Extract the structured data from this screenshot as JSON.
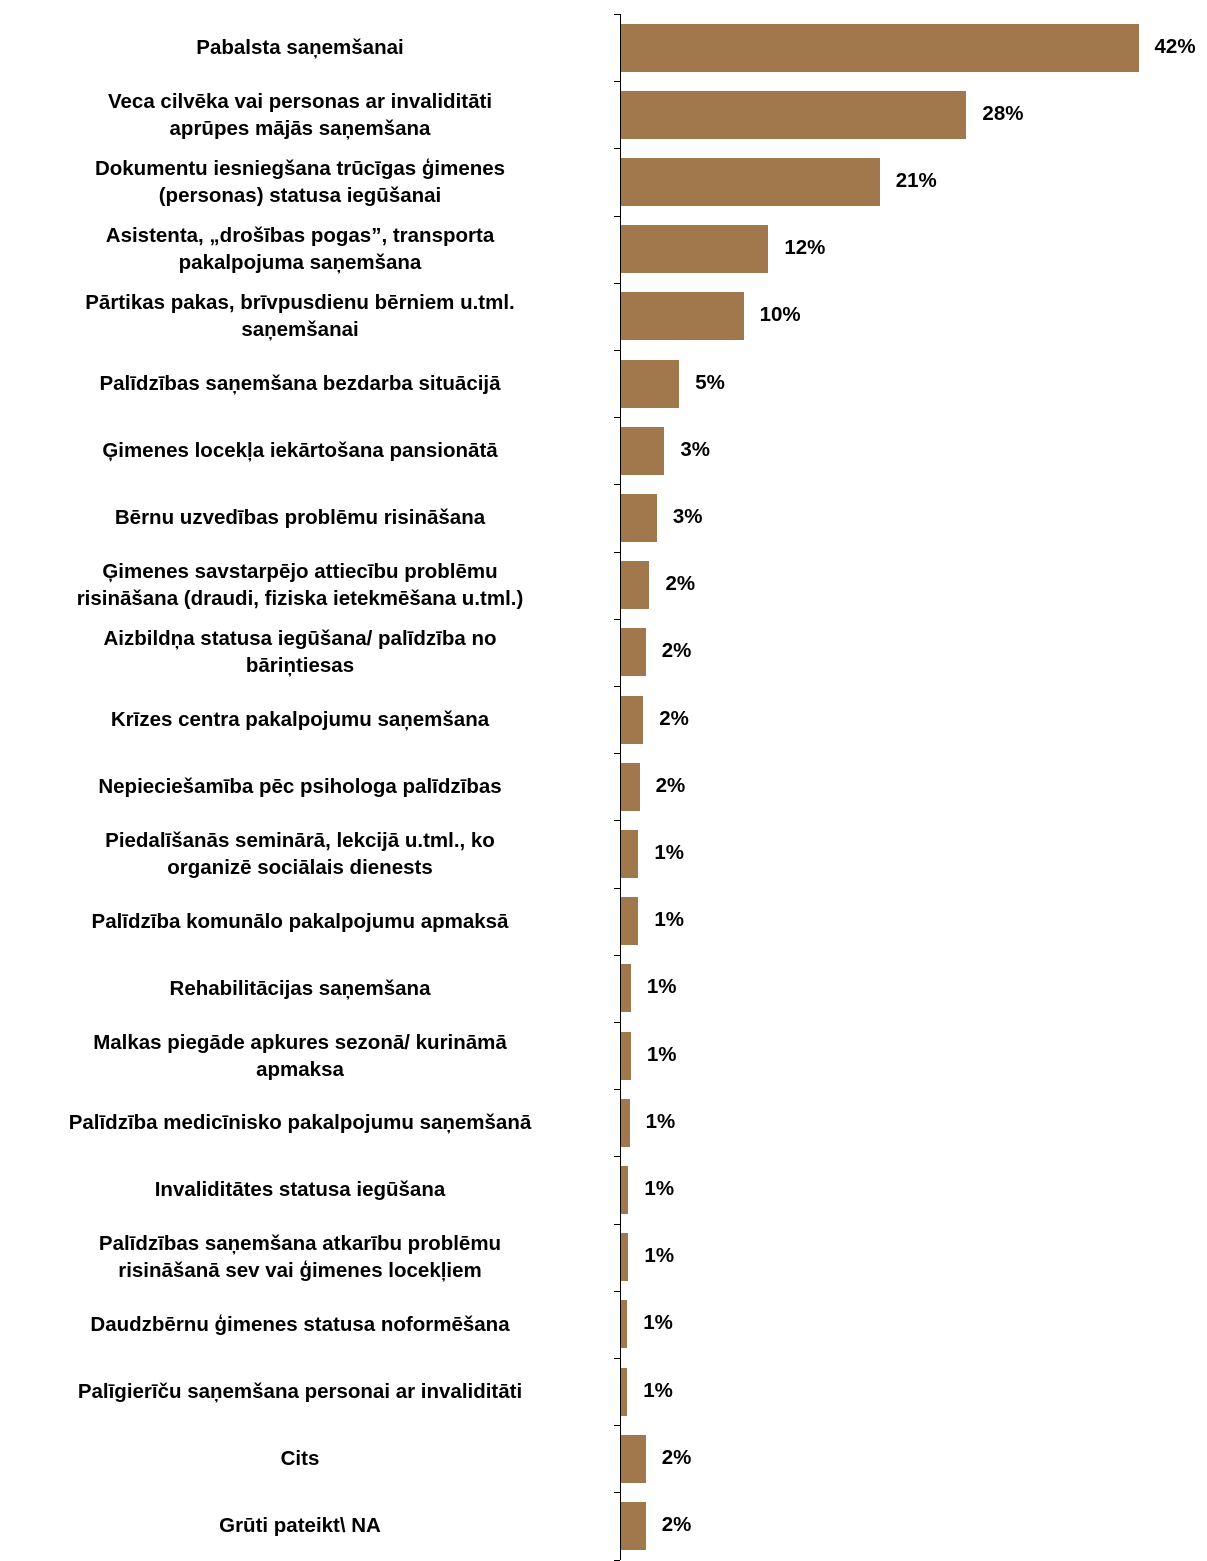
{
  "chart_data": {
    "type": "bar",
    "orientation": "horizontal",
    "categories": [
      "Pabalsta saņemšanai",
      "Veca cilvēka vai personas ar invaliditāti aprūpes mājās saņemšana",
      "Dokumentu iesniegšana trūcīgas  ģimenes (personas) statusa iegūšanai",
      "Asistenta, „drošības pogas”, transporta pakalpojuma saņemšana",
      "Pārtikas pakas, brīvpusdienu bērniem u.tml. saņemšanai",
      "Palīdzības saņemšana bezdarba situācijā",
      "Ģimenes locekļa iekārtošana pansionātā",
      "Bērnu uzvedības problēmu risināšana",
      "Ģimenes savstarpējo attiecību problēmu risināšana (draudi, fiziska ietekmēšana u.tml.)",
      "Aizbildņa statusa iegūšana/ palīdzība no bāriņtiesas",
      "Krīzes centra pakalpojumu saņemšana",
      "Nepieciešamība pēc psihologa palīdzības",
      "Piedalīšanās seminārā, lekcijā u.tml., ko organizē sociālais dienests",
      "Palīdzība komunālo pakalpojumu apmaksā",
      "Rehabilitācijas saņemšana",
      "Malkas piegāde apkures sezonā/ kurināmā apmaksa",
      "Palīdzība medicīnisko pakalpojumu saņemšanā",
      "Invaliditātes statusa iegūšana",
      "Palīdzības saņemšana atkarību problēmu risināšanā sev vai ģimenes locekļiem",
      "Daudzbērnu ģimenes statusa noformēšana",
      "Palīgierīču saņemšana personai ar invaliditāti",
      "Cits",
      "Grūti pateikt\\ NA"
    ],
    "label_lines": [
      [
        "Pabalsta saņemšanai"
      ],
      [
        "Veca cilvēka vai personas ar invaliditāti",
        "aprūpes mājās saņemšana"
      ],
      [
        "Dokumentu iesniegšana trūcīgas  ģimenes",
        "(personas) statusa iegūšanai"
      ],
      [
        "Asistenta, „drošības pogas”, transporta",
        "pakalpojuma saņemšana"
      ],
      [
        "Pārtikas pakas, brīvpusdienu bērniem u.tml.",
        "saņemšanai"
      ],
      [
        "Palīdzības saņemšana bezdarba situācijā"
      ],
      [
        "Ģimenes locekļa iekārtošana pansionātā"
      ],
      [
        "Bērnu uzvedības problēmu risināšana"
      ],
      [
        "Ģimenes savstarpējo attiecību problēmu",
        "risināšana (draudi, fiziska ietekmēšana u.tml.)"
      ],
      [
        "Aizbildņa statusa iegūšana/ palīdzība no",
        "bāriņtiesas"
      ],
      [
        "Krīzes centra pakalpojumu saņemšana"
      ],
      [
        "Nepieciešamība pēc psihologa palīdzības"
      ],
      [
        "Piedalīšanās seminārā, lekcijā u.tml., ko",
        "organizē sociālais dienests"
      ],
      [
        "Palīdzība komunālo pakalpojumu apmaksā"
      ],
      [
        "Rehabilitācijas saņemšana"
      ],
      [
        "Malkas piegāde apkures sezonā/ kurināmā",
        "apmaksa"
      ],
      [
        "Palīdzība medicīnisko pakalpojumu saņemšanā"
      ],
      [
        "Invaliditātes statusa iegūšana"
      ],
      [
        "Palīdzības saņemšana atkarību problēmu",
        "risināšanā sev vai ģimenes locekļiem"
      ],
      [
        "Daudzbērnu ģimenes statusa noformēšana"
      ],
      [
        "Palīgierīču saņemšana personai ar invaliditāti"
      ],
      [
        "Cits"
      ],
      [
        "Grūti pateikt\\ NA"
      ]
    ],
    "values": [
      42,
      28,
      21,
      12,
      10,
      5,
      3,
      3,
      2,
      2,
      2,
      2,
      1,
      1,
      1,
      1,
      1,
      1,
      1,
      1,
      1,
      2,
      2
    ],
    "data_labels": [
      "42%",
      "28%",
      "21%",
      "12%",
      "10%",
      "5%",
      "3%",
      "3%",
      "2%",
      "2%",
      "2%",
      "2%",
      "1%",
      "1%",
      "1%",
      "1%",
      "1%",
      "1%",
      "1%",
      "1%",
      "1%",
      "2%",
      "2%"
    ],
    "shown_values": [
      41.8,
      27.9,
      20.9,
      11.9,
      9.9,
      4.7,
      3.5,
      2.9,
      2.3,
      2.0,
      1.8,
      1.5,
      1.4,
      1.4,
      0.8,
      0.8,
      0.7,
      0.6,
      0.6,
      0.5,
      0.5,
      2.0,
      2.0
    ],
    "unit": "%",
    "xlim": [
      0,
      42
    ],
    "bar_color": "#A0784C",
    "legend": "none",
    "grid": false,
    "title": "",
    "xlabel": "",
    "ylabel": ""
  }
}
